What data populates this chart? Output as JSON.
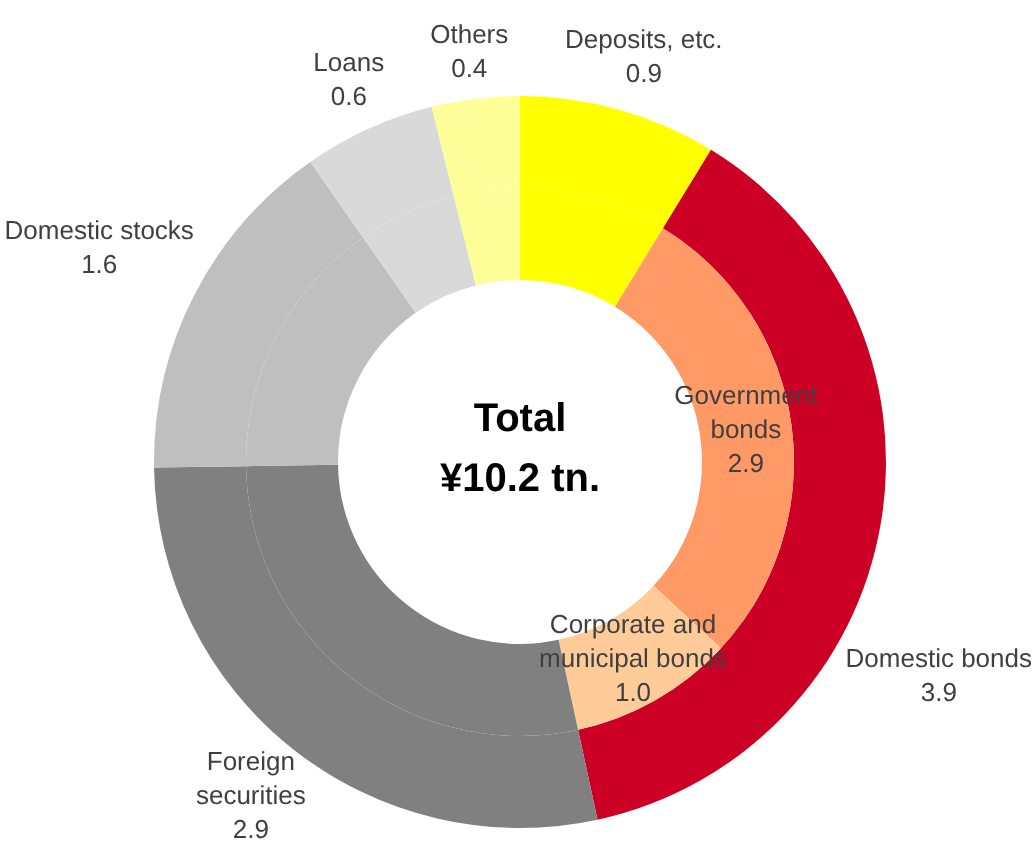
{
  "chart_data": [
    {
      "type": "donut",
      "title": "Total",
      "subtitle": "¥10.2 tn.",
      "categories": [
        "Deposits, etc.",
        "Domestic bonds",
        "Foreign securities",
        "Domestic stocks",
        "Loans",
        "Others"
      ],
      "values": [
        0.9,
        3.9,
        2.9,
        1.6,
        0.6,
        0.4
      ],
      "colors": [
        "#ffff00",
        "#cc0025",
        "#808080",
        "#bfbfbf",
        "#d9d9d9",
        "#ffff99"
      ],
      "value_labels": [
        "0.9",
        "3.9",
        "2.9",
        "1.6",
        "0.6",
        "0.4"
      ]
    },
    {
      "type": "donut",
      "categories": [
        null,
        "Government bonds",
        "Corporate and municipal bonds",
        null,
        null,
        null,
        null
      ],
      "values": [
        0.9,
        2.9,
        1.0,
        2.9,
        1.6,
        0.6,
        0.4
      ],
      "colors": [
        "#ffff00",
        "#ff9966",
        "#ffcc99",
        "#808080",
        "#bfbfbf",
        "#d9d9d9",
        "#ffff99"
      ],
      "value_labels": [
        null,
        "2.9",
        "1.0",
        null,
        null,
        null,
        null
      ]
    }
  ]
}
